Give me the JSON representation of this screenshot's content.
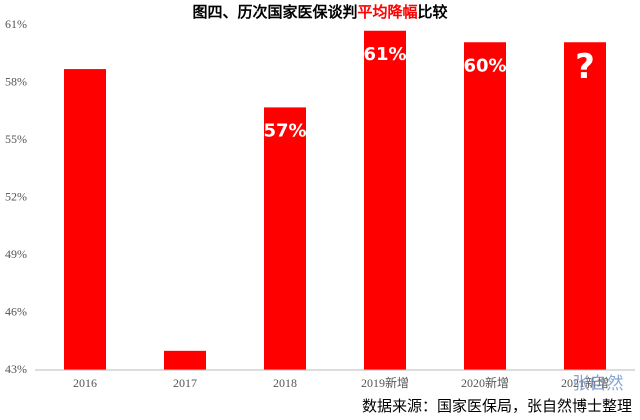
{
  "chart_data": {
    "type": "bar",
    "title_segments": [
      {
        "text": "图四、历次国家医保谈判",
        "color": "#000000"
      },
      {
        "text": "平均降幅",
        "color": "#ff0000"
      },
      {
        "text": "比较",
        "color": "#000000"
      }
    ],
    "categories": [
      "2016",
      "2017",
      "2018",
      "2019新增",
      "2020新增",
      "2021新增"
    ],
    "values": [
      58.7,
      44.0,
      56.7,
      60.7,
      60.1,
      60.1
    ],
    "value_labels": [
      null,
      null,
      "57%",
      "61%",
      "60%",
      "?"
    ],
    "color": "#ff0000",
    "ylim": [
      43,
      61
    ],
    "yticks": [
      {
        "value": 43,
        "label": "43%"
      },
      {
        "value": 46,
        "label": "46%"
      },
      {
        "value": 49,
        "label": "49%"
      },
      {
        "value": 52,
        "label": "52%"
      },
      {
        "value": 55,
        "label": "55%"
      },
      {
        "value": 58,
        "label": "58%"
      },
      {
        "value": 61,
        "label": "61%"
      }
    ],
    "grid": false,
    "source": "数据来源：国家医保局，张自然博士整理",
    "watermark": "张自然"
  }
}
